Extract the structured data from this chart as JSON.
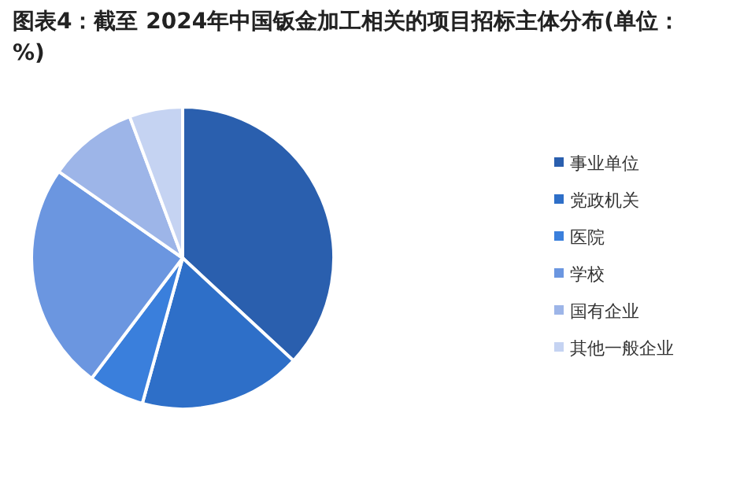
{
  "chart_data": {
    "type": "pie",
    "title": "图表4：截至 2024年中国钣金加工相关的项目招标主体分布(单位：%)",
    "categories": [
      "事业单位",
      "党政机关",
      "医院",
      "学校",
      "国有企业",
      "其他一般企业"
    ],
    "values": [
      36.9,
      17.4,
      6.0,
      24.4,
      9.6,
      5.7
    ],
    "colors": [
      "#2a5fae",
      "#2e6fc8",
      "#3a7fdc",
      "#6b96e0",
      "#9db5e8",
      "#c5d3f2"
    ],
    "legend": "right"
  }
}
